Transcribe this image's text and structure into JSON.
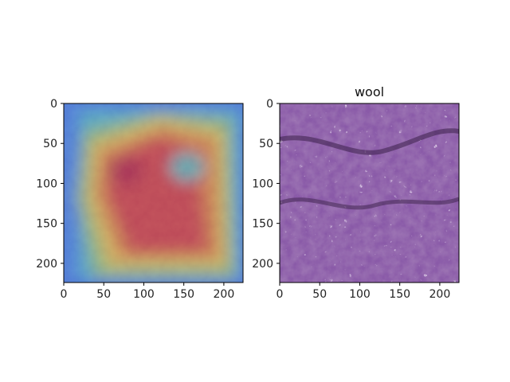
{
  "chart_data": [
    {
      "type": "heatmap",
      "title": "",
      "xlabel": "",
      "ylabel": "",
      "xlim": [
        0,
        224
      ],
      "ylim": [
        224,
        0
      ],
      "x_ticks": [
        {
          "value": 0,
          "label": "0"
        },
        {
          "value": 50,
          "label": "50"
        },
        {
          "value": 100,
          "label": "100"
        },
        {
          "value": 150,
          "label": "150"
        },
        {
          "value": 200,
          "label": "200"
        }
      ],
      "y_ticks": [
        {
          "value": 0,
          "label": "0"
        },
        {
          "value": 50,
          "label": "50"
        },
        {
          "value": 100,
          "label": "100"
        },
        {
          "value": 150,
          "label": "150"
        },
        {
          "value": 200,
          "label": "200"
        }
      ],
      "colormap": "jet",
      "overlay_on_image": true
    },
    {
      "type": "image",
      "title": "wool",
      "xlabel": "",
      "ylabel": "",
      "xlim": [
        0,
        224
      ],
      "ylim": [
        224,
        0
      ],
      "x_ticks": [
        {
          "value": 0,
          "label": "0"
        },
        {
          "value": 50,
          "label": "50"
        },
        {
          "value": 100,
          "label": "100"
        },
        {
          "value": 150,
          "label": "150"
        },
        {
          "value": 200,
          "label": "200"
        }
      ],
      "y_ticks": [
        {
          "value": 0,
          "label": "0"
        },
        {
          "value": 50,
          "label": "50"
        },
        {
          "value": 100,
          "label": "100"
        },
        {
          "value": 150,
          "label": "150"
        },
        {
          "value": 200,
          "label": "200"
        }
      ],
      "dominant_colors": [
        "#8a5aa8",
        "#b58ad0",
        "#5a3470",
        "#d8c0e8"
      ]
    }
  ]
}
